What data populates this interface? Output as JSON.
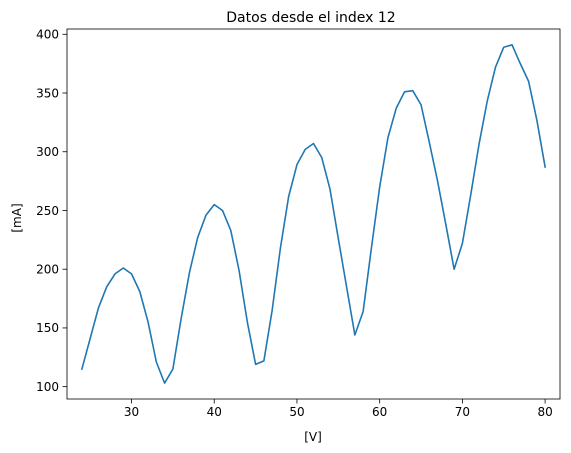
{
  "chart_data": {
    "type": "line",
    "title": "Datos desde el index 12",
    "xlabel": "[V]",
    "ylabel": "[mA]",
    "xlim": [
      22.2,
      81.8
    ],
    "ylim": [
      89.5,
      404.5
    ],
    "xticks": [
      30,
      40,
      50,
      60,
      70,
      80
    ],
    "yticks": [
      100,
      150,
      200,
      250,
      300,
      350,
      400
    ],
    "grid": false,
    "line_color": "#1f77b4",
    "series": [
      {
        "x": [
          24,
          25,
          26,
          27,
          28,
          29,
          30,
          31,
          32,
          33,
          34,
          35,
          36,
          37,
          38,
          39,
          40,
          41,
          42,
          43,
          44,
          45,
          46,
          47,
          48,
          49,
          50,
          51,
          52,
          53,
          54,
          55,
          56,
          57,
          58,
          59,
          60,
          61,
          62,
          63,
          64,
          65,
          66,
          67,
          68,
          69,
          70,
          71,
          72,
          73,
          74,
          75,
          76,
          77,
          78,
          79,
          80
        ],
        "values": [
          115,
          141,
          167,
          185,
          196,
          201,
          196,
          181,
          155,
          121,
          103,
          115,
          158,
          197,
          227,
          246,
          255,
          250,
          233,
          199,
          155,
          119,
          122,
          165,
          218,
          262,
          289,
          302,
          307,
          295,
          268,
          226,
          185,
          144,
          164,
          218,
          270,
          312,
          337,
          351,
          352,
          340,
          308,
          275,
          238,
          200,
          222,
          263,
          306,
          343,
          372,
          389,
          391,
          375,
          360,
          327,
          287
        ]
      }
    ]
  }
}
